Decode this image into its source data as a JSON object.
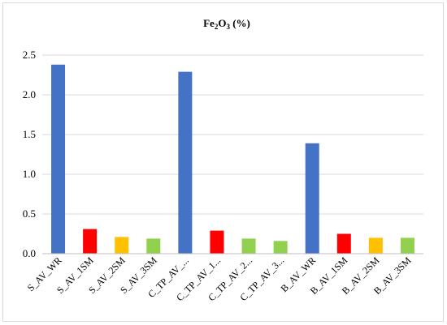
{
  "chart_data": {
    "type": "bar",
    "title": "Fe2O3 (%)",
    "title_parts": {
      "pre": "Fe",
      "sub1": "2",
      "mid": "O",
      "sub2": "3",
      "post": " (%)"
    },
    "xlabel": "",
    "ylabel": "",
    "ylim": [
      0,
      2.5
    ],
    "yticks": [
      {
        "value": 0,
        "label": "0.0"
      },
      {
        "value": 0.5,
        "label": "0.5"
      },
      {
        "value": 1,
        "label": "1.0"
      },
      {
        "value": 1.5,
        "label": "1.5"
      },
      {
        "value": 2,
        "label": "2.0"
      },
      {
        "value": 2.5,
        "label": "2.5"
      }
    ],
    "grid": true,
    "legend": "none",
    "categories": [
      "S_AV_WR",
      "S_AV_1SM",
      "S_AV_2SM",
      "S_AV_3SM",
      "C_TP_AV_...",
      "C_TP_AV_1...",
      "C_TP_AV_2...",
      "C_TP_AV_3...",
      "B_AV_WR",
      "B_AV_1SM",
      "B_AV_2SM",
      "B_AV_3SM"
    ],
    "values": [
      2.38,
      0.31,
      0.21,
      0.19,
      2.29,
      0.29,
      0.19,
      0.16,
      1.39,
      0.25,
      0.2,
      0.2
    ],
    "colors": [
      "#4472C4",
      "#FF0000",
      "#FFC000",
      "#92D050",
      "#4472C4",
      "#FF0000",
      "#92D050",
      "#92D050",
      "#4472C4",
      "#FF0000",
      "#FFC000",
      "#92D050"
    ],
    "gridline_color": "#d9d9d9",
    "axis_color": "#bfbfbf"
  }
}
